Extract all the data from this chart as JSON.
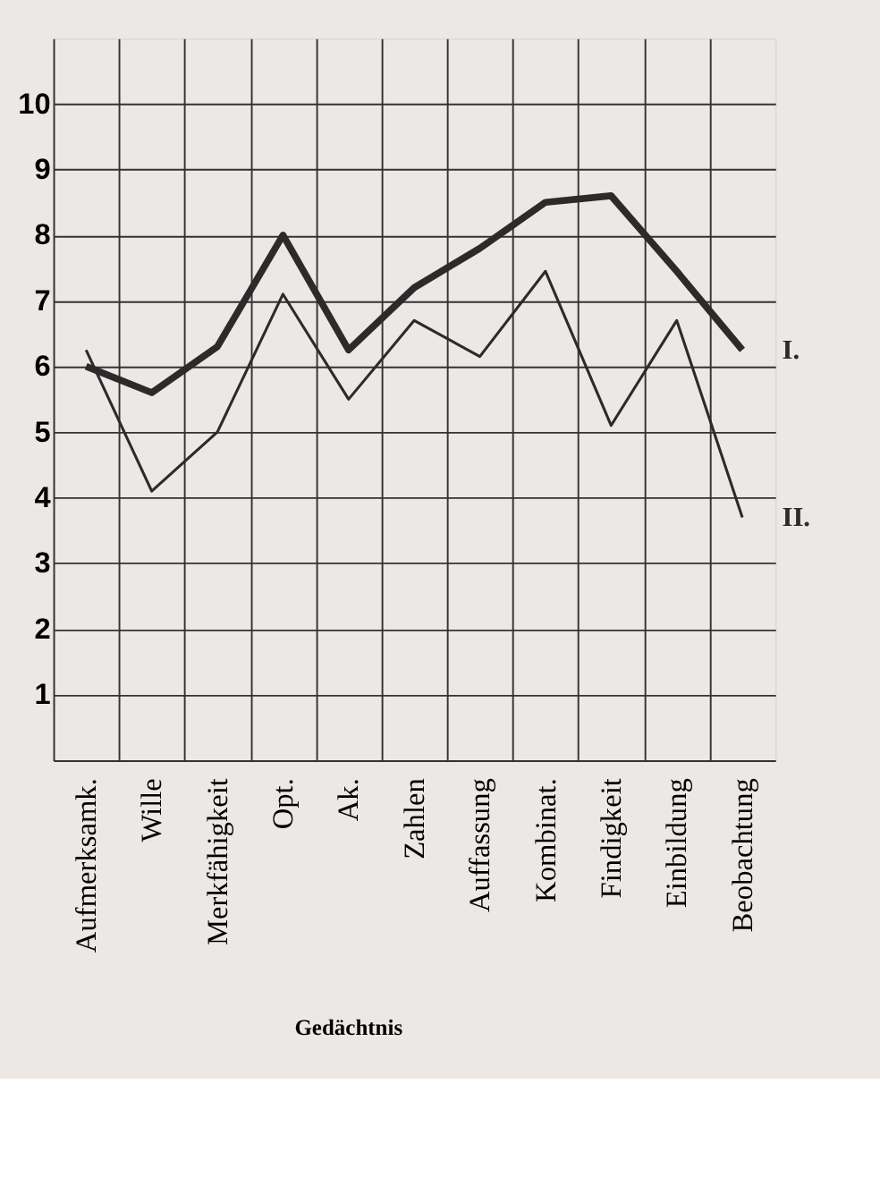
{
  "chart_data": {
    "type": "line",
    "categories": [
      "Aufmerksamk.",
      "Wille",
      "Merkfähigkeit",
      "Opt.",
      "Ak.",
      "Zahlen",
      "Auffassung",
      "Kombinat.",
      "Findigkeit",
      "Einbildung",
      "Beobachtung"
    ],
    "series": [
      {
        "name": "I.",
        "color": "#2b2b2b",
        "values": [
          6.0,
          5.6,
          6.3,
          8.0,
          6.25,
          7.2,
          7.8,
          8.5,
          8.6,
          7.45,
          6.25
        ]
      },
      {
        "name": "II.",
        "color": "#2b2b2b",
        "values": [
          6.25,
          4.1,
          5.0,
          7.1,
          5.5,
          6.7,
          6.15,
          7.45,
          5.1,
          6.7,
          3.7
        ]
      }
    ],
    "ylim": [
      0,
      11
    ],
    "yticks": [
      1,
      2,
      3,
      4,
      5,
      6,
      7,
      8,
      9,
      10
    ],
    "grid": true,
    "marker": "none",
    "line_style": "solid",
    "annotations": [
      "Gedächtnis"
    ]
  }
}
